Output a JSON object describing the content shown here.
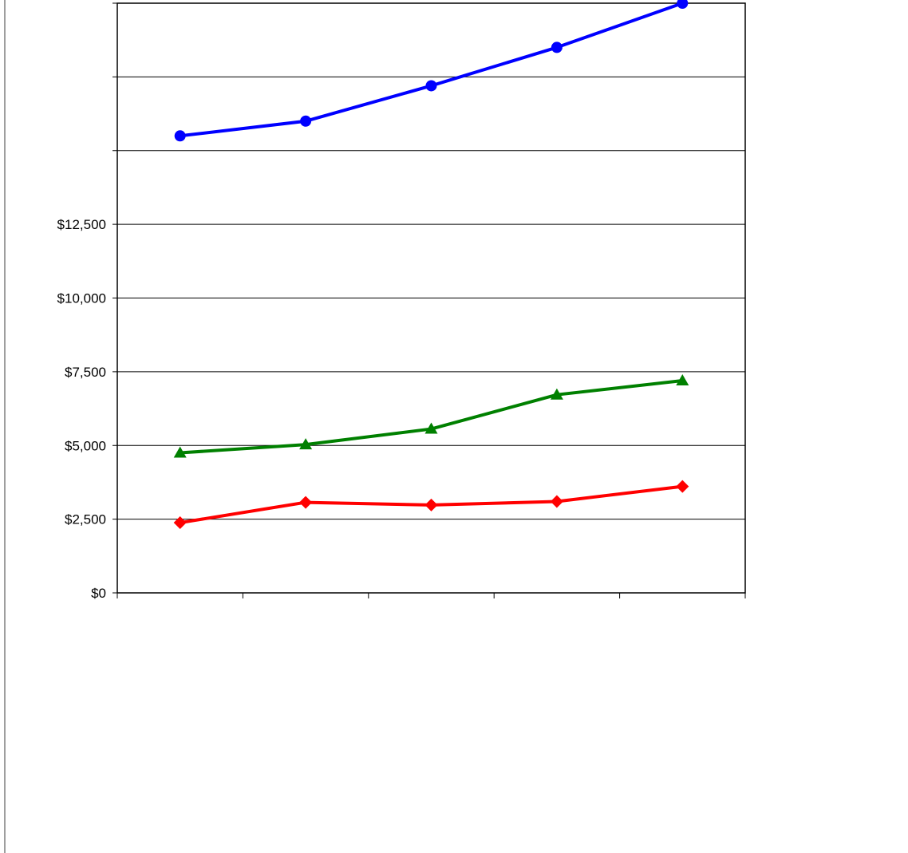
{
  "chart_data": {
    "type": "line",
    "title": "",
    "xlabel": "",
    "ylabel": "",
    "ylim": [
      0,
      20000
    ],
    "y_ticks": [
      0,
      2500,
      5000,
      7500,
      10000,
      12500,
      15000,
      17500,
      20000
    ],
    "y_tick_labels": [
      "$0",
      "$2,500",
      "$5,000",
      "$7,500",
      "$10,000",
      "$12,500",
      "",
      "",
      ""
    ],
    "categories": [
      "",
      "",
      "",
      "",
      ""
    ],
    "grid": true,
    "legend": "none",
    "series": [
      {
        "values": [
          15500,
          16000,
          17200,
          18500,
          20000
        ],
        "color": "#0000ff",
        "marker": "circle"
      },
      {
        "values": [
          4750,
          5030,
          5560,
          6720,
          7200
        ],
        "color": "#008000",
        "marker": "triangle"
      },
      {
        "values": [
          2380,
          3070,
          2980,
          3100,
          3610
        ],
        "color": "#ff0000",
        "marker": "diamond"
      }
    ]
  }
}
